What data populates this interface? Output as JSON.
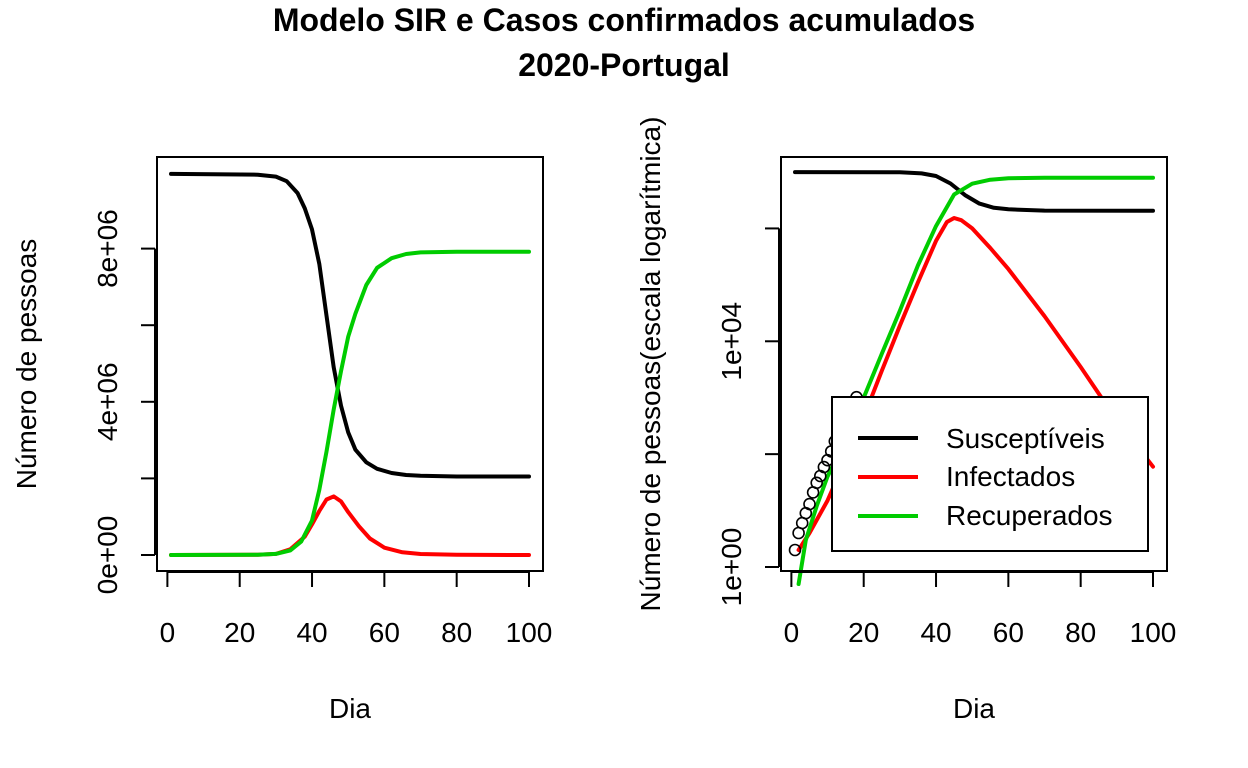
{
  "figure": {
    "title_line1": "Modelo SIR e Casos confirmados acumulados",
    "title_line2": "2020-Portugal"
  },
  "chart_data": [
    {
      "type": "line",
      "xlabel": "Dia",
      "ylabel": "Número de pessoas",
      "xlim": [
        1,
        100
      ],
      "ylim": [
        0,
        10000000
      ],
      "log_y": false,
      "grid": false,
      "xticks": [
        {
          "v": 0,
          "label": "0"
        },
        {
          "v": 20,
          "label": "20"
        },
        {
          "v": 40,
          "label": "40"
        },
        {
          "v": 60,
          "label": "60"
        },
        {
          "v": 80,
          "label": "80"
        },
        {
          "v": 100,
          "label": "100"
        }
      ],
      "yticks": [
        {
          "v": 0,
          "label": "0e+00"
        },
        {
          "v": 2000000,
          "label": ""
        },
        {
          "v": 4000000,
          "label": "4e+06"
        },
        {
          "v": 6000000,
          "label": ""
        },
        {
          "v": 8000000,
          "label": "8e+06"
        }
      ],
      "series": [
        {
          "name": "Susceptíveis",
          "color": "#000000",
          "x": [
            1,
            25,
            30,
            33,
            36,
            38,
            40,
            42,
            44,
            46,
            48,
            50,
            52,
            55,
            58,
            62,
            66,
            70,
            80,
            100
          ],
          "y": [
            9950000,
            9930000,
            9880000,
            9760000,
            9450000,
            9050000,
            8500000,
            7600000,
            6250000,
            4900000,
            3900000,
            3200000,
            2750000,
            2420000,
            2250000,
            2140000,
            2090000,
            2070000,
            2050000,
            2050000
          ]
        },
        {
          "name": "Infectados",
          "color": "#ff0000",
          "x": [
            1,
            25,
            30,
            34,
            38,
            40,
            42,
            44,
            46,
            48,
            50,
            53,
            56,
            60,
            65,
            70,
            80,
            100
          ],
          "y": [
            0,
            5000,
            30000,
            150000,
            480000,
            800000,
            1150000,
            1450000,
            1530000,
            1400000,
            1120000,
            750000,
            430000,
            190000,
            70000,
            25000,
            5000,
            0
          ]
        },
        {
          "name": "Recuperados",
          "color": "#00cc00",
          "x": [
            1,
            25,
            30,
            34,
            37,
            40,
            42,
            44,
            46,
            48,
            50,
            52,
            55,
            58,
            62,
            66,
            70,
            80,
            100
          ],
          "y": [
            0,
            5000,
            30000,
            120000,
            350000,
            900000,
            1700000,
            2700000,
            3800000,
            4800000,
            5700000,
            6300000,
            7050000,
            7500000,
            7750000,
            7860000,
            7900000,
            7920000,
            7920000
          ]
        }
      ]
    },
    {
      "type": "line",
      "xlabel": "Dia",
      "ylabel": "Número de pessoas(escala logarítmica)",
      "xlim": [
        1,
        100
      ],
      "ylim": [
        1,
        10000000
      ],
      "log_y": true,
      "grid": false,
      "legend_position": "bottom-right",
      "xticks": [
        {
          "v": 0,
          "label": "0"
        },
        {
          "v": 20,
          "label": "20"
        },
        {
          "v": 40,
          "label": "40"
        },
        {
          "v": 60,
          "label": "60"
        },
        {
          "v": 80,
          "label": "80"
        },
        {
          "v": 100,
          "label": "100"
        }
      ],
      "yticks": [
        {
          "v": 1,
          "label": "1e+00"
        },
        {
          "v": 100,
          "label": ""
        },
        {
          "v": 10000,
          "label": "1e+04"
        },
        {
          "v": 1000000,
          "label": ""
        }
      ],
      "legend": [
        "Susceptíveis",
        "Infectados",
        "Recuperados"
      ],
      "series": [
        {
          "name": "Susceptíveis",
          "color": "#000000",
          "x": [
            1,
            30,
            36,
            40,
            44,
            48,
            52,
            56,
            60,
            70,
            100
          ],
          "y": [
            9950000,
            9880000,
            9450000,
            8500000,
            6250000,
            3900000,
            2750000,
            2320000,
            2180000,
            2070000,
            2050000
          ]
        },
        {
          "name": "Infectados",
          "color": "#ff0000",
          "x": [
            2,
            5,
            10,
            15,
            20,
            25,
            30,
            35,
            40,
            43,
            45,
            47,
            50,
            55,
            60,
            70,
            80,
            90,
            100
          ],
          "y": [
            2,
            4,
            15,
            80,
            450,
            3000,
            19000,
            110000,
            600000,
            1300000,
            1530000,
            1400000,
            1000000,
            450000,
            190000,
            28000,
            3500,
            400,
            60
          ]
        },
        {
          "name": "Recuperados",
          "color": "#00cc00",
          "x": [
            2,
            4,
            7,
            10,
            15,
            20,
            25,
            30,
            35,
            40,
            45,
            50,
            55,
            60,
            70,
            80,
            100
          ],
          "y": [
            0.5,
            3,
            12,
            40,
            180,
            1000,
            6000,
            35000,
            220000,
            1100000,
            4000000,
            6200000,
            7300000,
            7750000,
            7900000,
            7920000,
            7920000
          ]
        }
      ],
      "observed_cases": {
        "name": "Casos confirmados acumulados",
        "color": "#000000",
        "days": [
          1,
          2,
          3,
          4,
          5,
          6,
          7,
          8,
          9,
          10,
          11,
          12,
          13,
          14,
          15,
          16,
          17,
          18
        ],
        "values": [
          2,
          4,
          6,
          9,
          13,
          21,
          31,
          41,
          59,
          78,
          112,
          169,
          245,
          331,
          448,
          642,
          785,
          1020
        ]
      }
    }
  ]
}
